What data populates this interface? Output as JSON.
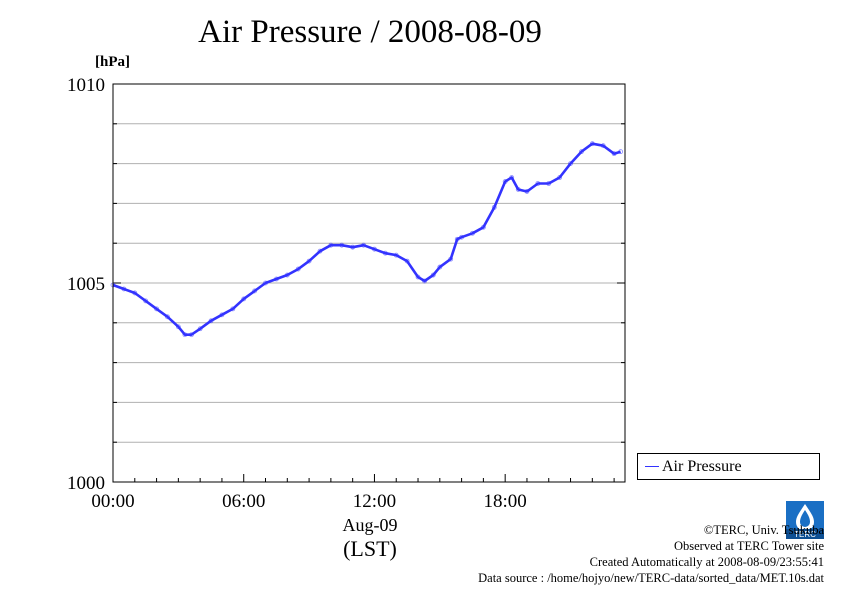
{
  "header": {
    "title": "Air Pressure / 2008-08-09",
    "unit": "[hPa]"
  },
  "legend": {
    "label": "Air Pressure"
  },
  "xaxis": {
    "date_label": "Aug-09",
    "timezone_label": "(LST)"
  },
  "credits": {
    "copyright": "©TERC, Univ. Tsukuba",
    "observed": "Observed at TERC Tower site",
    "created": "Created Automatically at 2008-08-09/23:55:41",
    "source": "Data source : /home/hojyo/new/TERC-data/sorted_data/MET.10s.dat"
  },
  "logo": {
    "icon": "terc-logo",
    "text": "TERC"
  },
  "colors": {
    "series": "#3333ff",
    "grid": "#b0b0b0"
  },
  "chart_data": {
    "type": "line",
    "title": "Air Pressure / 2008-08-09",
    "ylabel": "[hPa]",
    "xlabel": "Aug-09",
    "xlim": [
      0,
      23.5
    ],
    "ylim": [
      1000,
      1010
    ],
    "xticks": [
      0,
      6,
      12,
      18
    ],
    "xtick_labels": [
      "00:00",
      "06:00",
      "12:00",
      "18:00"
    ],
    "yticks": [
      1000,
      1005,
      1010
    ],
    "ytick_labels": [
      "1000",
      "1005",
      "1010"
    ],
    "grid": "horizontal",
    "legend_position": "right",
    "series": [
      {
        "name": "Air Pressure",
        "x": [
          0,
          0.5,
          1,
          1.5,
          2,
          2.5,
          3,
          3.3,
          3.6,
          4,
          4.5,
          5,
          5.5,
          6,
          6.5,
          7,
          7.5,
          8,
          8.5,
          9,
          9.5,
          10,
          10.5,
          11,
          11.5,
          12,
          12.5,
          13,
          13.5,
          14,
          14.3,
          14.7,
          15,
          15.5,
          15.8,
          16,
          16.5,
          17,
          17.5,
          18,
          18.3,
          18.6,
          19,
          19.5,
          20,
          20.5,
          21,
          21.5,
          22,
          22.5,
          23,
          23.3
        ],
        "values": [
          1004.95,
          1004.85,
          1004.75,
          1004.55,
          1004.35,
          1004.15,
          1003.9,
          1003.7,
          1003.7,
          1003.85,
          1004.05,
          1004.2,
          1004.35,
          1004.6,
          1004.8,
          1005.0,
          1005.1,
          1005.2,
          1005.35,
          1005.55,
          1005.8,
          1005.95,
          1005.95,
          1005.9,
          1005.95,
          1005.85,
          1005.75,
          1005.7,
          1005.55,
          1005.15,
          1005.05,
          1005.2,
          1005.4,
          1005.6,
          1006.1,
          1006.15,
          1006.25,
          1006.4,
          1006.9,
          1007.55,
          1007.65,
          1007.35,
          1007.3,
          1007.5,
          1007.5,
          1007.65,
          1008.0,
          1008.3,
          1008.5,
          1008.45,
          1008.25,
          1008.3
        ]
      }
    ]
  }
}
